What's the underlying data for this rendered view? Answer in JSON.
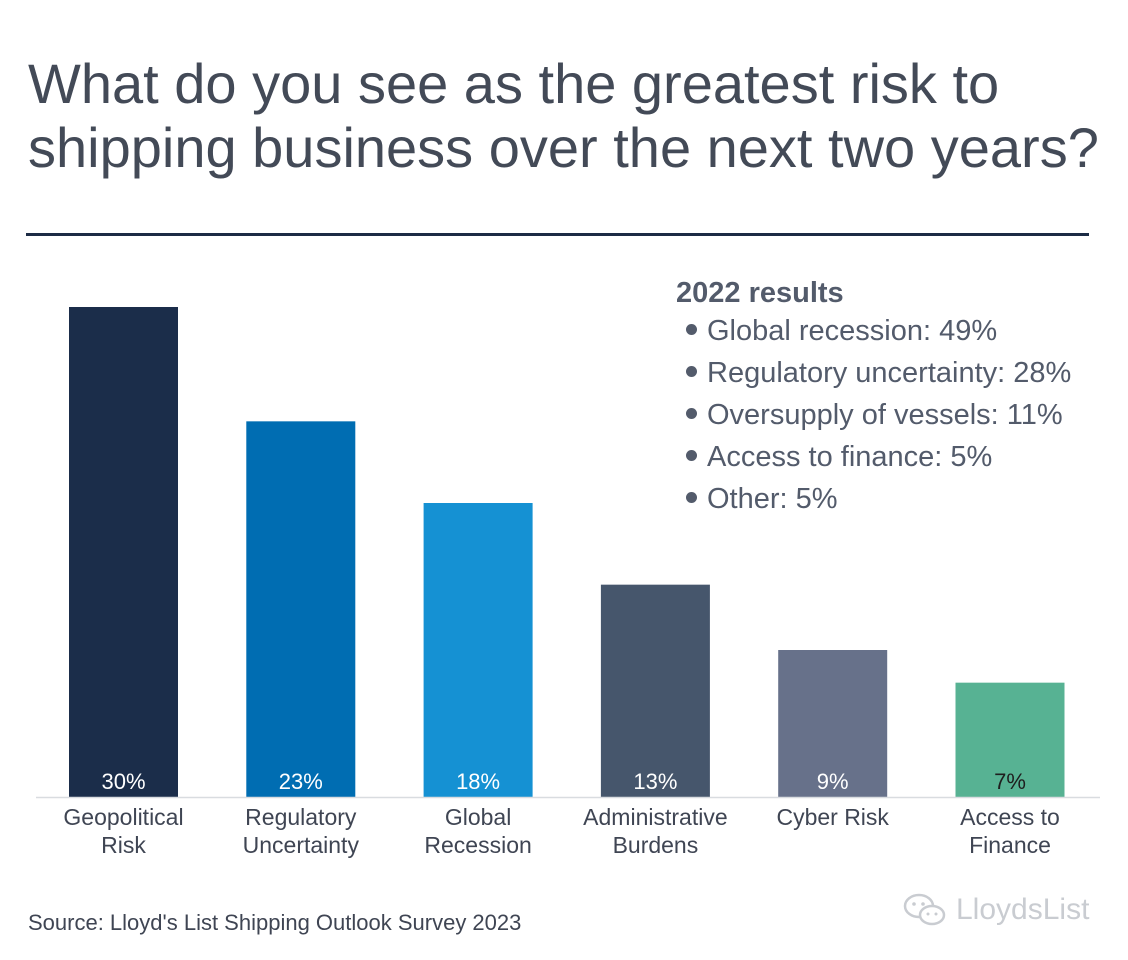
{
  "title": "What do you see as the greatest risk to shipping business over the next two years?",
  "chart_data": {
    "type": "bar",
    "categories": [
      [
        "Geopolitical",
        "Risk"
      ],
      [
        "Regulatory",
        "Uncertainty"
      ],
      [
        "Global",
        "Recession"
      ],
      [
        "Administrative",
        "Burdens"
      ],
      [
        "Cyber Risk"
      ],
      [
        "Access to",
        "Finance"
      ]
    ],
    "values": [
      30,
      23,
      18,
      13,
      9,
      7
    ],
    "value_labels": [
      "30%",
      "23%",
      "18%",
      "13%",
      "9%",
      "7%"
    ],
    "colors": [
      "#1b2d4a",
      "#006db2",
      "#1591d3",
      "#46566c",
      "#67718a",
      "#57b293"
    ],
    "label_colors": [
      "#ffffff",
      "#ffffff",
      "#ffffff",
      "#ffffff",
      "#ffffff",
      "#1e1e1e"
    ],
    "ylim": [
      0,
      30
    ]
  },
  "legend": {
    "title": "2022 results",
    "items": [
      "Global recession: 49%",
      "Regulatory uncertainty: 28%",
      "Oversupply of vessels: 11%",
      "Access to finance: 5%",
      "Other: 5%"
    ]
  },
  "source": "Source: Lloyd's List Shipping Outlook Survey 2023",
  "watermark": "LloydsList"
}
